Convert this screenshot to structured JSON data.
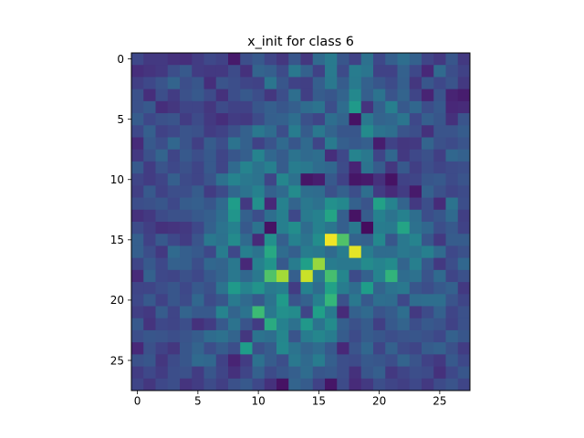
{
  "chart_data": {
    "type": "heatmap",
    "title": "x_init for class 6",
    "xlabel": "",
    "ylabel": "",
    "rows": 28,
    "cols": 28,
    "x_ticks": [
      "0",
      "5",
      "10",
      "15",
      "20",
      "25"
    ],
    "y_ticks": [
      "0",
      "5",
      "10",
      "15",
      "20",
      "25"
    ],
    "xlim": [
      -0.5,
      27.5
    ],
    "ylim": [
      27.5,
      -0.5
    ],
    "colormap": "viridis",
    "value_range": [
      0,
      1
    ],
    "colormap_stops": [
      "#440154",
      "#482878",
      "#3e4989",
      "#31688e",
      "#26828e",
      "#1f9e89",
      "#35b779",
      "#6ece58",
      "#b5de2b",
      "#fde725"
    ],
    "grid": false,
    "values": [
      [
        0.22,
        0.17,
        0.17,
        0.14,
        0.13,
        0.18,
        0.22,
        0.2,
        0.07,
        0.24,
        0.28,
        0.21,
        0.16,
        0.27,
        0.16,
        0.34,
        0.41,
        0.27,
        0.2,
        0.37,
        0.22,
        0.3,
        0.36,
        0.31,
        0.21,
        0.17,
        0.27,
        0.17
      ],
      [
        0.13,
        0.15,
        0.17,
        0.24,
        0.28,
        0.18,
        0.17,
        0.17,
        0.23,
        0.14,
        0.32,
        0.3,
        0.23,
        0.4,
        0.31,
        0.2,
        0.41,
        0.23,
        0.42,
        0.39,
        0.2,
        0.2,
        0.31,
        0.22,
        0.11,
        0.34,
        0.24,
        0.2
      ],
      [
        0.19,
        0.22,
        0.26,
        0.32,
        0.24,
        0.27,
        0.13,
        0.26,
        0.24,
        0.21,
        0.2,
        0.39,
        0.27,
        0.2,
        0.19,
        0.3,
        0.4,
        0.29,
        0.41,
        0.31,
        0.27,
        0.23,
        0.3,
        0.16,
        0.27,
        0.22,
        0.26,
        0.17
      ],
      [
        0.25,
        0.13,
        0.24,
        0.18,
        0.25,
        0.28,
        0.23,
        0.14,
        0.24,
        0.28,
        0.24,
        0.16,
        0.24,
        0.36,
        0.19,
        0.29,
        0.27,
        0.32,
        0.47,
        0.3,
        0.38,
        0.26,
        0.32,
        0.21,
        0.1,
        0.26,
        0.1,
        0.08
      ],
      [
        0.25,
        0.28,
        0.13,
        0.16,
        0.21,
        0.21,
        0.16,
        0.23,
        0.2,
        0.2,
        0.27,
        0.3,
        0.27,
        0.3,
        0.35,
        0.38,
        0.24,
        0.35,
        0.54,
        0.15,
        0.31,
        0.43,
        0.28,
        0.33,
        0.24,
        0.28,
        0.11,
        0.12
      ],
      [
        0.29,
        0.22,
        0.25,
        0.26,
        0.18,
        0.23,
        0.17,
        0.13,
        0.18,
        0.17,
        0.23,
        0.3,
        0.31,
        0.36,
        0.25,
        0.21,
        0.36,
        0.32,
        0.05,
        0.4,
        0.32,
        0.33,
        0.39,
        0.22,
        0.3,
        0.27,
        0.14,
        0.26
      ],
      [
        0.22,
        0.3,
        0.2,
        0.22,
        0.26,
        0.25,
        0.18,
        0.2,
        0.25,
        0.31,
        0.4,
        0.35,
        0.24,
        0.42,
        0.29,
        0.4,
        0.32,
        0.27,
        0.27,
        0.48,
        0.38,
        0.36,
        0.26,
        0.24,
        0.14,
        0.26,
        0.26,
        0.29
      ],
      [
        0.12,
        0.28,
        0.24,
        0.33,
        0.26,
        0.19,
        0.29,
        0.24,
        0.38,
        0.31,
        0.2,
        0.26,
        0.34,
        0.27,
        0.34,
        0.21,
        0.41,
        0.3,
        0.28,
        0.3,
        0.08,
        0.2,
        0.16,
        0.17,
        0.32,
        0.25,
        0.23,
        0.26
      ],
      [
        0.17,
        0.25,
        0.32,
        0.21,
        0.28,
        0.24,
        0.28,
        0.21,
        0.27,
        0.3,
        0.45,
        0.33,
        0.29,
        0.38,
        0.34,
        0.36,
        0.13,
        0.22,
        0.45,
        0.4,
        0.21,
        0.33,
        0.17,
        0.22,
        0.25,
        0.19,
        0.33,
        0.31
      ],
      [
        0.28,
        0.18,
        0.26,
        0.22,
        0.25,
        0.21,
        0.28,
        0.21,
        0.34,
        0.45,
        0.38,
        0.43,
        0.29,
        0.42,
        0.4,
        0.35,
        0.33,
        0.23,
        0.1,
        0.38,
        0.29,
        0.16,
        0.28,
        0.19,
        0.24,
        0.21,
        0.23,
        0.24
      ],
      [
        0.21,
        0.18,
        0.21,
        0.3,
        0.23,
        0.21,
        0.26,
        0.37,
        0.45,
        0.4,
        0.38,
        0.21,
        0.46,
        0.37,
        0.06,
        0.08,
        0.28,
        0.2,
        0.06,
        0.07,
        0.14,
        0.05,
        0.2,
        0.21,
        0.27,
        0.28,
        0.23,
        0.26
      ],
      [
        0.19,
        0.28,
        0.2,
        0.24,
        0.24,
        0.29,
        0.18,
        0.23,
        0.33,
        0.38,
        0.44,
        0.31,
        0.34,
        0.48,
        0.36,
        0.35,
        0.25,
        0.31,
        0.24,
        0.36,
        0.18,
        0.12,
        0.18,
        0.07,
        0.31,
        0.25,
        0.21,
        0.23
      ],
      [
        0.24,
        0.25,
        0.27,
        0.22,
        0.29,
        0.3,
        0.27,
        0.34,
        0.55,
        0.17,
        0.5,
        0.11,
        0.44,
        0.32,
        0.4,
        0.37,
        0.5,
        0.47,
        0.31,
        0.26,
        0.57,
        0.45,
        0.32,
        0.17,
        0.24,
        0.12,
        0.38,
        0.24
      ],
      [
        0.14,
        0.17,
        0.23,
        0.25,
        0.25,
        0.28,
        0.3,
        0.36,
        0.52,
        0.31,
        0.24,
        0.36,
        0.43,
        0.22,
        0.41,
        0.44,
        0.58,
        0.3,
        0.05,
        0.29,
        0.44,
        0.38,
        0.44,
        0.36,
        0.24,
        0.27,
        0.34,
        0.19
      ],
      [
        0.23,
        0.19,
        0.14,
        0.15,
        0.17,
        0.22,
        0.31,
        0.38,
        0.44,
        0.28,
        0.38,
        0.05,
        0.43,
        0.49,
        0.35,
        0.44,
        0.39,
        0.3,
        0.4,
        0.03,
        0.42,
        0.41,
        0.58,
        0.37,
        0.33,
        0.24,
        0.28,
        0.2
      ],
      [
        0.3,
        0.2,
        0.28,
        0.22,
        0.18,
        0.26,
        0.4,
        0.37,
        0.48,
        0.34,
        0.12,
        0.5,
        0.3,
        0.44,
        0.38,
        0.49,
        0.98,
        0.72,
        0.32,
        0.31,
        0.47,
        0.27,
        0.4,
        0.45,
        0.27,
        0.17,
        0.29,
        0.29
      ],
      [
        0.3,
        0.24,
        0.17,
        0.34,
        0.3,
        0.28,
        0.22,
        0.42,
        0.22,
        0.43,
        0.38,
        0.6,
        0.35,
        0.3,
        0.42,
        0.4,
        0.34,
        0.42,
        0.96,
        0.42,
        0.35,
        0.35,
        0.4,
        0.38,
        0.43,
        0.34,
        0.22,
        0.25
      ],
      [
        0.21,
        0.28,
        0.22,
        0.31,
        0.3,
        0.24,
        0.33,
        0.32,
        0.4,
        0.11,
        0.44,
        0.51,
        0.28,
        0.42,
        0.56,
        0.84,
        0.42,
        0.4,
        0.4,
        0.48,
        0.45,
        0.48,
        0.32,
        0.43,
        0.28,
        0.17,
        0.24,
        0.33
      ],
      [
        0.12,
        0.31,
        0.22,
        0.21,
        0.25,
        0.22,
        0.28,
        0.32,
        0.4,
        0.33,
        0.4,
        0.72,
        0.86,
        0.3,
        0.92,
        0.4,
        0.7,
        0.46,
        0.23,
        0.31,
        0.45,
        0.65,
        0.35,
        0.37,
        0.26,
        0.34,
        0.21,
        0.25
      ],
      [
        0.21,
        0.21,
        0.24,
        0.27,
        0.22,
        0.28,
        0.25,
        0.38,
        0.54,
        0.45,
        0.51,
        0.41,
        0.43,
        0.18,
        0.44,
        0.35,
        0.57,
        0.42,
        0.35,
        0.55,
        0.32,
        0.38,
        0.4,
        0.27,
        0.24,
        0.28,
        0.31,
        0.17
      ],
      [
        0.22,
        0.28,
        0.2,
        0.27,
        0.23,
        0.33,
        0.23,
        0.27,
        0.41,
        0.34,
        0.28,
        0.38,
        0.54,
        0.26,
        0.31,
        0.43,
        0.66,
        0.25,
        0.4,
        0.28,
        0.36,
        0.35,
        0.22,
        0.35,
        0.36,
        0.36,
        0.26,
        0.21
      ],
      [
        0.19,
        0.17,
        0.29,
        0.21,
        0.32,
        0.28,
        0.28,
        0.45,
        0.32,
        0.38,
        0.68,
        0.4,
        0.5,
        0.48,
        0.21,
        0.56,
        0.41,
        0.12,
        0.31,
        0.34,
        0.26,
        0.29,
        0.36,
        0.17,
        0.23,
        0.31,
        0.21,
        0.25
      ],
      [
        0.28,
        0.15,
        0.22,
        0.21,
        0.24,
        0.14,
        0.18,
        0.28,
        0.38,
        0.26,
        0.18,
        0.61,
        0.44,
        0.37,
        0.53,
        0.38,
        0.48,
        0.3,
        0.25,
        0.29,
        0.19,
        0.28,
        0.32,
        0.24,
        0.28,
        0.26,
        0.2,
        0.25
      ],
      [
        0.24,
        0.27,
        0.26,
        0.24,
        0.26,
        0.29,
        0.35,
        0.37,
        0.32,
        0.16,
        0.38,
        0.36,
        0.46,
        0.26,
        0.42,
        0.46,
        0.42,
        0.29,
        0.23,
        0.29,
        0.27,
        0.24,
        0.26,
        0.27,
        0.25,
        0.22,
        0.31,
        0.27
      ],
      [
        0.11,
        0.25,
        0.2,
        0.16,
        0.27,
        0.32,
        0.24,
        0.29,
        0.24,
        0.55,
        0.25,
        0.29,
        0.47,
        0.38,
        0.32,
        0.35,
        0.28,
        0.11,
        0.26,
        0.33,
        0.21,
        0.31,
        0.23,
        0.21,
        0.29,
        0.31,
        0.25,
        0.18
      ],
      [
        0.25,
        0.27,
        0.16,
        0.23,
        0.27,
        0.34,
        0.33,
        0.2,
        0.1,
        0.18,
        0.37,
        0.29,
        0.24,
        0.4,
        0.34,
        0.42,
        0.3,
        0.24,
        0.23,
        0.28,
        0.27,
        0.24,
        0.32,
        0.26,
        0.2,
        0.17,
        0.28,
        0.22
      ],
      [
        0.18,
        0.22,
        0.18,
        0.24,
        0.25,
        0.18,
        0.27,
        0.21,
        0.14,
        0.21,
        0.31,
        0.23,
        0.27,
        0.3,
        0.35,
        0.27,
        0.28,
        0.24,
        0.14,
        0.27,
        0.3,
        0.17,
        0.21,
        0.24,
        0.23,
        0.14,
        0.22,
        0.27
      ],
      [
        0.21,
        0.16,
        0.22,
        0.24,
        0.15,
        0.18,
        0.23,
        0.19,
        0.25,
        0.28,
        0.22,
        0.14,
        0.05,
        0.32,
        0.29,
        0.2,
        0.06,
        0.23,
        0.12,
        0.17,
        0.24,
        0.21,
        0.19,
        0.22,
        0.17,
        0.23,
        0.26,
        0.21
      ]
    ]
  }
}
